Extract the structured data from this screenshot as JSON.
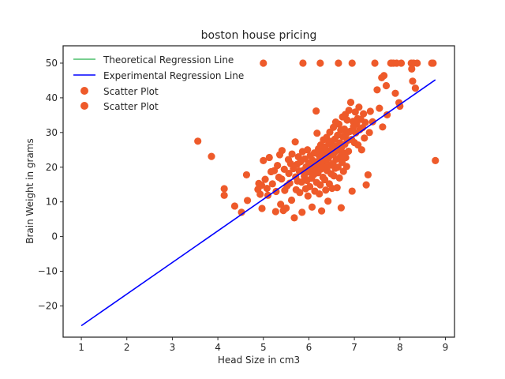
{
  "chart_data": {
    "type": "scatter",
    "title": "boston house pricing",
    "xlabel": "Head Size in cm3",
    "ylabel": "Brain Weight in grams",
    "xlim": [
      0.6,
      9.2
    ],
    "ylim": [
      -29,
      55
    ],
    "xticks": [
      1,
      2,
      3,
      4,
      5,
      6,
      7,
      8,
      9
    ],
    "yticks": [
      -20,
      -10,
      0,
      10,
      20,
      30,
      40,
      50
    ],
    "grid": false,
    "legend_position": "top-left",
    "colors": {
      "scatter": "#ee5a2a",
      "theoretical": "#4cbf6c",
      "experimental": "#0000ff"
    },
    "series": [
      {
        "name": "Theoretical Regression Line",
        "kind": "line",
        "color": "#4cbf6c",
        "points": []
      },
      {
        "name": "Experimental Regression Line",
        "kind": "line",
        "color": "#0000ff",
        "points": [
          [
            1.0,
            -25.7
          ],
          [
            8.78,
            45.2
          ]
        ]
      },
      {
        "name": "Scatter Plot",
        "kind": "scatter",
        "color": "#ee5a2a",
        "points": [
          [
            3.56,
            27.5
          ],
          [
            3.86,
            23.1
          ],
          [
            4.14,
            13.8
          ],
          [
            4.14,
            11.9
          ],
          [
            4.37,
            8.8
          ],
          [
            4.52,
            7.0
          ],
          [
            4.63,
            17.8
          ],
          [
            4.65,
            10.4
          ],
          [
            4.88,
            13.6
          ],
          [
            4.9,
            15.3
          ],
          [
            4.93,
            12.2
          ],
          [
            4.96,
            14.8
          ],
          [
            4.97,
            8.1
          ],
          [
            5.0,
            50.0
          ],
          [
            5.0,
            21.9
          ],
          [
            5.04,
            16.5
          ],
          [
            5.08,
            13.9
          ],
          [
            5.1,
            11.9
          ],
          [
            5.13,
            22.8
          ],
          [
            5.17,
            18.7
          ],
          [
            5.2,
            15.2
          ],
          [
            5.24,
            19.0
          ],
          [
            5.27,
            7.2
          ],
          [
            5.28,
            13.0
          ],
          [
            5.31,
            20.5
          ],
          [
            5.34,
            17.1
          ],
          [
            5.36,
            23.6
          ],
          [
            5.38,
            9.3
          ],
          [
            5.4,
            16.6
          ],
          [
            5.41,
            24.8
          ],
          [
            5.44,
            7.5
          ],
          [
            5.46,
            19.4
          ],
          [
            5.47,
            13.3
          ],
          [
            5.5,
            8.2
          ],
          [
            5.52,
            14.6
          ],
          [
            5.55,
            22.2
          ],
          [
            5.56,
            18.2
          ],
          [
            5.58,
            15.4
          ],
          [
            5.6,
            21.0
          ],
          [
            5.62,
            10.5
          ],
          [
            5.63,
            23.8
          ],
          [
            5.66,
            19.6
          ],
          [
            5.68,
            5.4
          ],
          [
            5.7,
            27.3
          ],
          [
            5.71,
            17.2
          ],
          [
            5.72,
            13.5
          ],
          [
            5.74,
            20.8
          ],
          [
            5.75,
            16.0
          ],
          [
            5.77,
            23.0
          ],
          [
            5.79,
            18.9
          ],
          [
            5.8,
            12.7
          ],
          [
            5.82,
            21.6
          ],
          [
            5.84,
            15.7
          ],
          [
            5.85,
            7.0
          ],
          [
            5.86,
            24.5
          ],
          [
            5.87,
            50.0
          ],
          [
            5.88,
            19.1
          ],
          [
            5.9,
            17.4
          ],
          [
            5.91,
            22.4
          ],
          [
            5.93,
            13.8
          ],
          [
            5.94,
            20.1
          ],
          [
            5.96,
            16.2
          ],
          [
            5.97,
            25.0
          ],
          [
            5.98,
            11.7
          ],
          [
            6.0,
            21.2
          ],
          [
            6.01,
            18.6
          ],
          [
            6.02,
            14.4
          ],
          [
            6.03,
            23.3
          ],
          [
            6.05,
            19.8
          ],
          [
            6.06,
            16.8
          ],
          [
            6.07,
            8.5
          ],
          [
            6.08,
            22.0
          ],
          [
            6.1,
            20.4
          ],
          [
            6.11,
            17.9
          ],
          [
            6.12,
            24.1
          ],
          [
            6.13,
            13.1
          ],
          [
            6.14,
            21.5
          ],
          [
            6.15,
            19.3
          ],
          [
            6.16,
            36.2
          ],
          [
            6.17,
            15.6
          ],
          [
            6.18,
            29.8
          ],
          [
            6.19,
            23.9
          ],
          [
            6.2,
            18.4
          ],
          [
            6.21,
            25.3
          ],
          [
            6.22,
            20.9
          ],
          [
            6.23,
            12.3
          ],
          [
            6.24,
            22.7
          ],
          [
            6.25,
            14.9
          ],
          [
            6.26,
            26.4
          ],
          [
            6.27,
            19.5
          ],
          [
            6.28,
            7.4
          ],
          [
            6.29,
            21.8
          ],
          [
            6.3,
            24.4
          ],
          [
            6.31,
            17.1
          ],
          [
            6.32,
            27.9
          ],
          [
            6.33,
            20.3
          ],
          [
            6.34,
            23.1
          ],
          [
            6.35,
            16.4
          ],
          [
            6.36,
            25.8
          ],
          [
            6.37,
            13.4
          ],
          [
            6.38,
            21.9
          ],
          [
            6.39,
            28.6
          ],
          [
            6.4,
            19.0
          ],
          [
            6.41,
            24.7
          ],
          [
            6.42,
            10.2
          ],
          [
            6.43,
            22.6
          ],
          [
            6.44,
            26.9
          ],
          [
            6.45,
            15.2
          ],
          [
            6.46,
            30.1
          ],
          [
            6.47,
            20.6
          ],
          [
            6.48,
            23.5
          ],
          [
            6.49,
            18.1
          ],
          [
            6.5,
            27.4
          ],
          [
            6.51,
            13.9
          ],
          [
            6.52,
            25.5
          ],
          [
            6.53,
            21.1
          ],
          [
            6.54,
            31.5
          ],
          [
            6.55,
            17.5
          ],
          [
            6.56,
            24.2
          ],
          [
            6.57,
            28.1
          ],
          [
            6.58,
            19.7
          ],
          [
            6.59,
            33.0
          ],
          [
            6.6,
            22.3
          ],
          [
            6.61,
            26.1
          ],
          [
            6.62,
            14.1
          ],
          [
            6.63,
            29.2
          ],
          [
            6.64,
            20.0
          ],
          [
            6.65,
            24.9
          ],
          [
            6.66,
            32.4
          ],
          [
            6.67,
            16.9
          ],
          [
            6.68,
            27.0
          ],
          [
            6.69,
            23.0
          ],
          [
            6.7,
            30.7
          ],
          [
            6.71,
            8.3
          ],
          [
            6.72,
            25.7
          ],
          [
            6.73,
            21.4
          ],
          [
            6.74,
            34.5
          ],
          [
            6.75,
            28.8
          ],
          [
            6.76,
            18.8
          ],
          [
            6.77,
            24.0
          ],
          [
            6.78,
            31.0
          ],
          [
            6.79,
            26.6
          ],
          [
            6.8,
            35.2
          ],
          [
            6.81,
            22.8
          ],
          [
            6.82,
            29.5
          ],
          [
            6.83,
            20.2
          ],
          [
            6.84,
            33.6
          ],
          [
            6.85,
            27.7
          ],
          [
            6.87,
            24.6
          ],
          [
            6.88,
            36.4
          ],
          [
            6.9,
            30.3
          ],
          [
            6.92,
            38.7
          ],
          [
            6.94,
            28.0
          ],
          [
            6.95,
            13.1
          ],
          [
            6.97,
            33.2
          ],
          [
            6.98,
            31.7
          ],
          [
            7.0,
            27.1
          ],
          [
            7.02,
            35.9
          ],
          [
            7.03,
            29.9
          ],
          [
            7.05,
            32.5
          ],
          [
            7.07,
            34.0
          ],
          [
            7.08,
            26.4
          ],
          [
            7.1,
            37.3
          ],
          [
            7.12,
            30.8
          ],
          [
            7.14,
            33.8
          ],
          [
            7.16,
            25.0
          ],
          [
            7.18,
            31.4
          ],
          [
            7.2,
            35.4
          ],
          [
            7.22,
            28.4
          ],
          [
            7.24,
            32.9
          ],
          [
            7.26,
            14.9
          ],
          [
            7.3,
            17.8
          ],
          [
            7.33,
            30.0
          ],
          [
            7.35,
            36.1
          ],
          [
            7.4,
            33.1
          ],
          [
            7.45,
            50.0
          ],
          [
            7.5,
            42.3
          ],
          [
            7.55,
            37.0
          ],
          [
            7.6,
            45.8
          ],
          [
            7.62,
            31.6
          ],
          [
            7.65,
            46.4
          ],
          [
            7.7,
            43.5
          ],
          [
            7.72,
            35.1
          ],
          [
            7.8,
            50.0
          ],
          [
            7.82,
            50.0
          ],
          [
            7.86,
            50.0
          ],
          [
            7.9,
            41.3
          ],
          [
            7.93,
            50.0
          ],
          [
            7.98,
            38.6
          ],
          [
            8.0,
            37.6
          ],
          [
            8.03,
            50.0
          ],
          [
            8.25,
            50.0
          ],
          [
            8.26,
            48.3
          ],
          [
            8.28,
            44.8
          ],
          [
            8.3,
            50.0
          ],
          [
            8.34,
            42.8
          ],
          [
            8.38,
            50.0
          ],
          [
            8.7,
            50.0
          ],
          [
            8.73,
            50.0
          ],
          [
            8.78,
            21.9
          ],
          [
            6.25,
            50.0
          ],
          [
            6.65,
            50.0
          ],
          [
            6.95,
            50.0
          ]
        ]
      },
      {
        "name": "Scatter Plot",
        "kind": "scatter",
        "color": "#ee5a2a",
        "points": []
      }
    ]
  }
}
